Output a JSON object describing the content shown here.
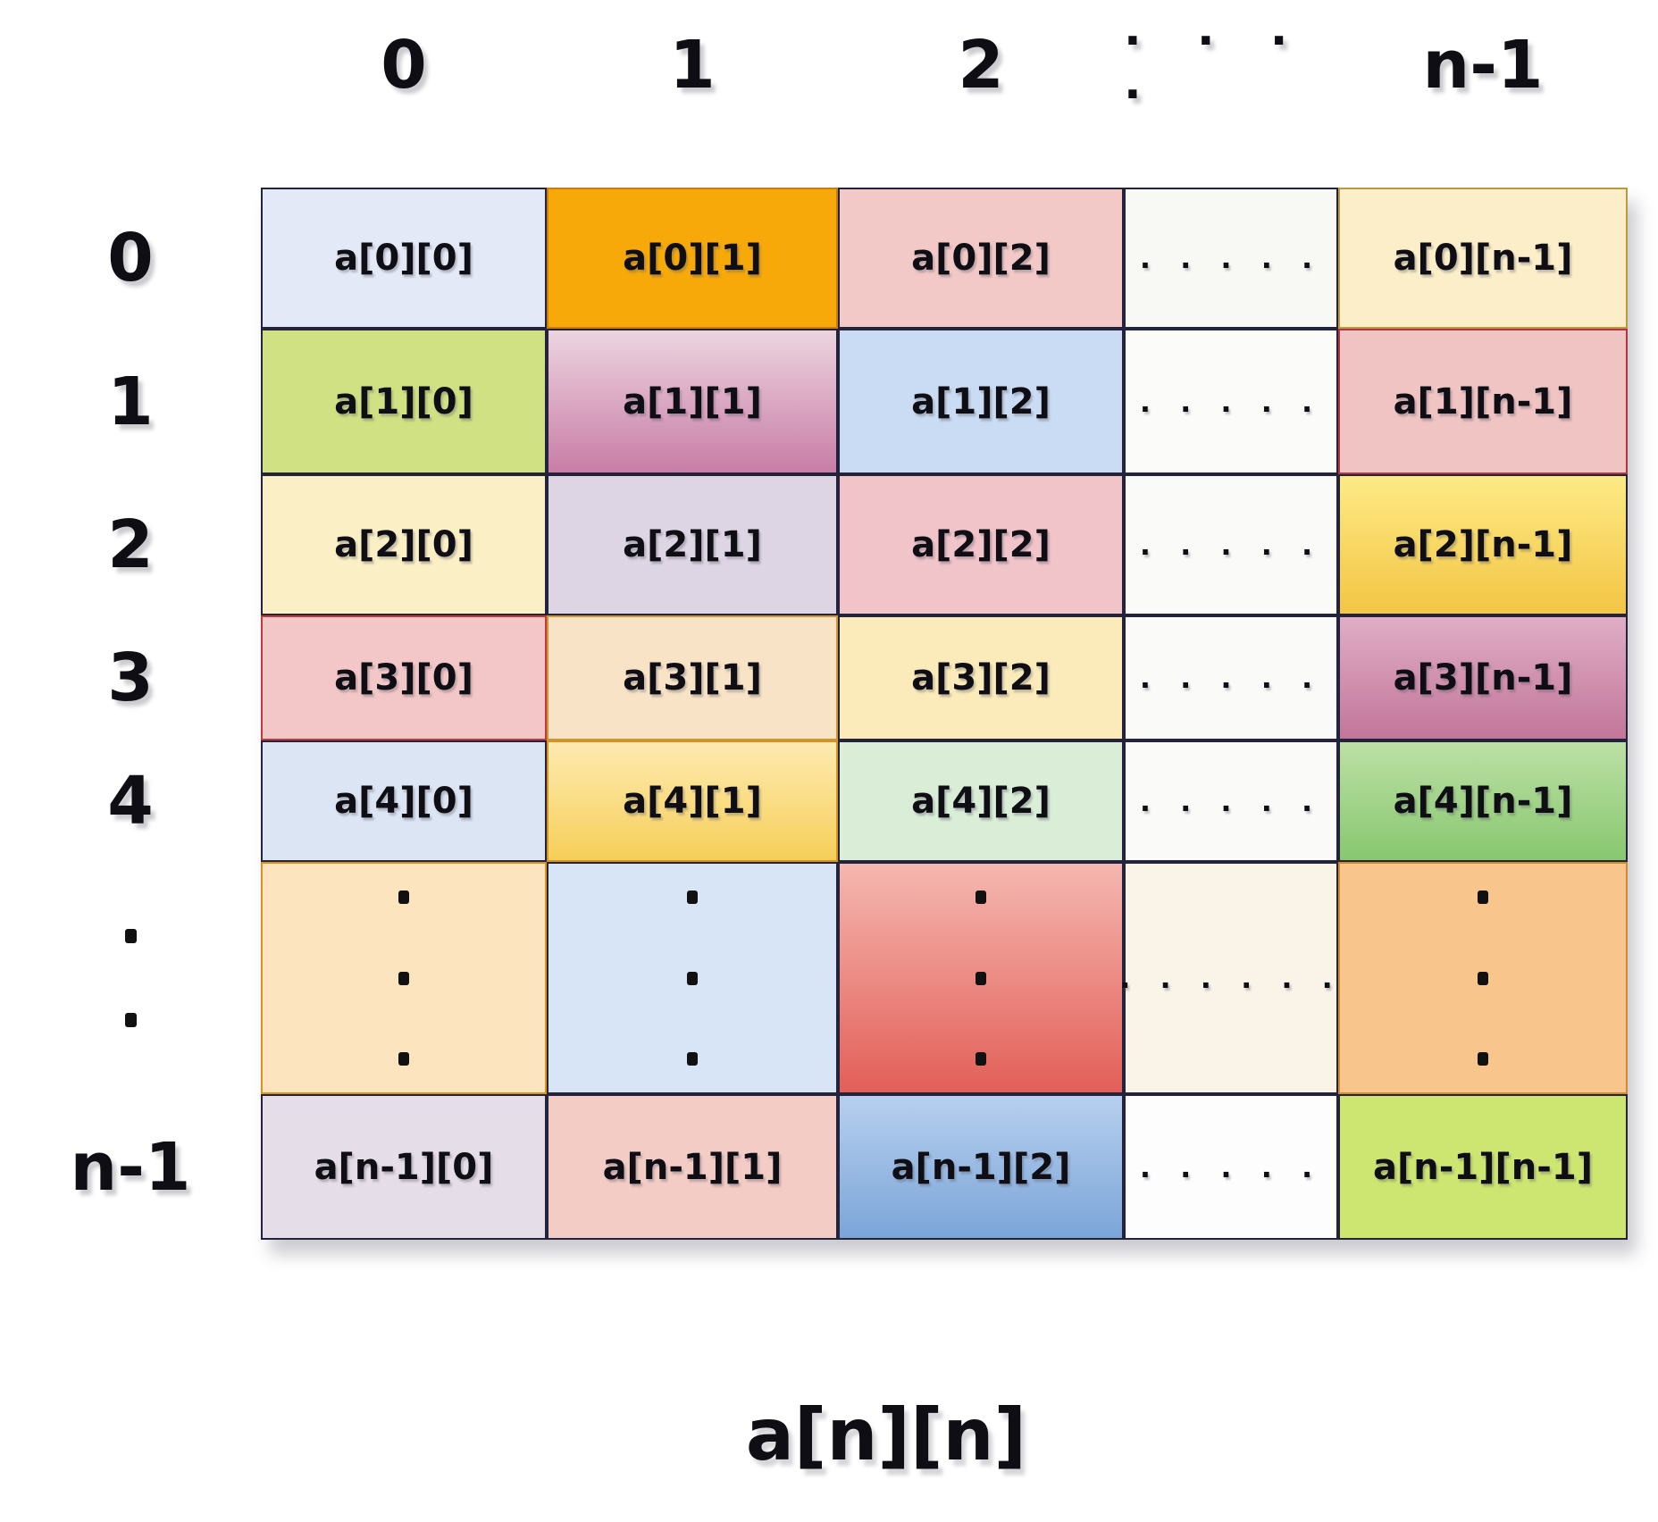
{
  "figure": {
    "caption": "a[n][n]"
  },
  "axes": {
    "col_headers": [
      {
        "label": "0"
      },
      {
        "label": "1"
      },
      {
        "label": "2"
      },
      {
        "label": ". . . .",
        "dots": true
      },
      {
        "label": "n-1"
      }
    ],
    "row_headers": [
      {
        "label": "0"
      },
      {
        "label": "1"
      },
      {
        "label": "2"
      },
      {
        "label": "3"
      },
      {
        "label": "4"
      },
      {
        "vdots": 2
      },
      {
        "label": "n-1"
      }
    ]
  },
  "grid": {
    "border_color": "#23233b",
    "text_color": "#0e0e14",
    "rows": [
      {
        "name": "0",
        "cells": [
          {
            "label": "a[0][0]",
            "bg": "#e3e9f6"
          },
          {
            "label": "a[0][1]",
            "bg": "#f7a90a",
            "bc": "#c97d10"
          },
          {
            "label": "a[0][2]",
            "bg": "#f3c9c7"
          },
          {
            "type": "hdots",
            "label": ". . . . .",
            "bg": "#f8f8f5"
          },
          {
            "label": "a[0][n-1]",
            "bg": "#fbeec9",
            "bc": "#b99a3e"
          }
        ]
      },
      {
        "name": "1",
        "cells": [
          {
            "label": "a[1][0]",
            "bg": "#cfe183"
          },
          {
            "label": "a[1][1]",
            "bg": "#ecd4df",
            "bg2": "#c87da6"
          },
          {
            "label": "a[1][2]",
            "bg": "#c9dcf3"
          },
          {
            "type": "hdots",
            "label": ". . . . .",
            "bg": "#fbfbfa"
          },
          {
            "label": "a[1][n-1]",
            "bg": "#f1c4c4",
            "bc": "#b23442"
          }
        ]
      },
      {
        "name": "2",
        "cells": [
          {
            "label": "a[2][0]",
            "bg": "#fbefc5"
          },
          {
            "label": "a[2][1]",
            "bg": "#ddd5e3"
          },
          {
            "label": "a[2][2]",
            "bg": "#f1c4ca"
          },
          {
            "type": "hdots",
            "label": ". . . . .",
            "bg": "#fafaf8"
          },
          {
            "label": "a[2][n-1]",
            "bg": "#fdea85",
            "bg2": "#f3c545"
          }
        ]
      },
      {
        "name": "3",
        "cells": [
          {
            "label": "a[3][0]",
            "bg": "#f3c7c7",
            "bc": "#c03a3a"
          },
          {
            "label": "a[3][1]",
            "bg": "#f9e3c6",
            "bc": "#cf9433"
          },
          {
            "label": "a[3][2]",
            "bg": "#fbeaba"
          },
          {
            "type": "hdots",
            "label": ". . . . .",
            "bg": "#fafaf8"
          },
          {
            "label": "a[3][n-1]",
            "bg": "#dfadc6",
            "bg2": "#c27699"
          }
        ]
      },
      {
        "name": "4",
        "cells": [
          {
            "label": "a[4][0]",
            "bg": "#dce5f4"
          },
          {
            "label": "a[4][1]",
            "bg": "#fdeab0",
            "bg2": "#f6cf59",
            "bc": "#d8921f"
          },
          {
            "label": "a[4][2]",
            "bg": "#d9edd7"
          },
          {
            "type": "hdots",
            "label": ". . . . .",
            "bg": "#fafaf8"
          },
          {
            "label": "a[4][n-1]",
            "bg": "#bce0a5",
            "bg2": "#88c76f"
          }
        ]
      },
      {
        "name": "dots",
        "cells": [
          {
            "type": "vdots",
            "dots": 3,
            "bg": "#fbe4be",
            "bc": "#d8921f"
          },
          {
            "type": "vdots",
            "dots": 3,
            "bg": "#d7e5f6"
          },
          {
            "type": "vdots",
            "dots": 3,
            "bg": "#f4b7b0",
            "bg2": "#e25f58"
          },
          {
            "type": "hdots",
            "label": ". . . . . .",
            "bg": "#faf3e8"
          },
          {
            "type": "vdots",
            "dots": 3,
            "bg": "#f8c68d",
            "bc": "#cf8a2e"
          }
        ]
      },
      {
        "name": "n-1",
        "cells": [
          {
            "label": "a[n-1][0]",
            "bg": "#e5dde8"
          },
          {
            "label": "a[n-1][1]",
            "bg": "#f4ccc6"
          },
          {
            "label": "a[n-1][2]",
            "bg": "#b7cfee",
            "bg2": "#7ba5d8"
          },
          {
            "type": "hdots",
            "label": ". . . . .",
            "bg": "#fdfdfd"
          },
          {
            "label": "a[n-1][n-1]",
            "bg": "#cde571"
          }
        ]
      }
    ]
  }
}
